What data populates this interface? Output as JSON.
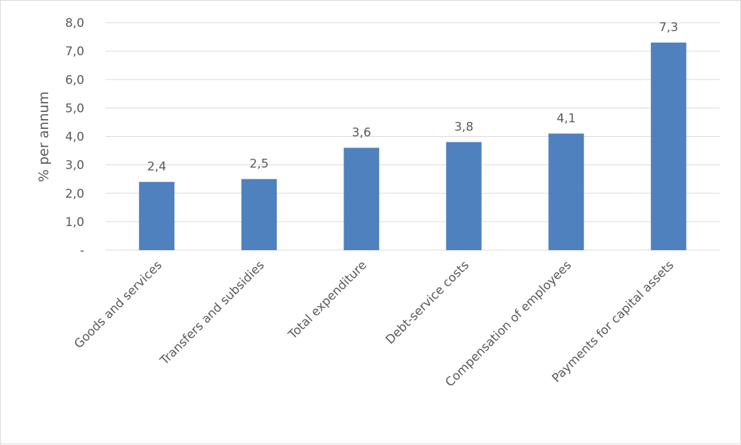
{
  "chart_data": {
    "type": "bar",
    "title": "",
    "xlabel": "",
    "ylabel": "% per annum",
    "categories": [
      "Goods and services",
      "Transfers and subsidies",
      "Total expenditure",
      "Debt-service costs",
      "Compensation of employees",
      "Payments for capital assets"
    ],
    "values": [
      2.4,
      2.5,
      3.6,
      3.8,
      4.1,
      7.3
    ],
    "data_labels": [
      "2,4",
      "2,5",
      "3,6",
      "3,8",
      "4,1",
      "7,3"
    ],
    "ylim": [
      0,
      8
    ],
    "yticks": [
      0,
      1,
      2,
      3,
      4,
      5,
      6,
      7,
      8
    ],
    "ytick_labels": [
      "-",
      "1,0",
      "2,0",
      "3,0",
      "4,0",
      "5,0",
      "6,0",
      "7,0",
      "8,0"
    ],
    "grid": true,
    "legend": "none",
    "bar_color": "#4e81bd"
  }
}
